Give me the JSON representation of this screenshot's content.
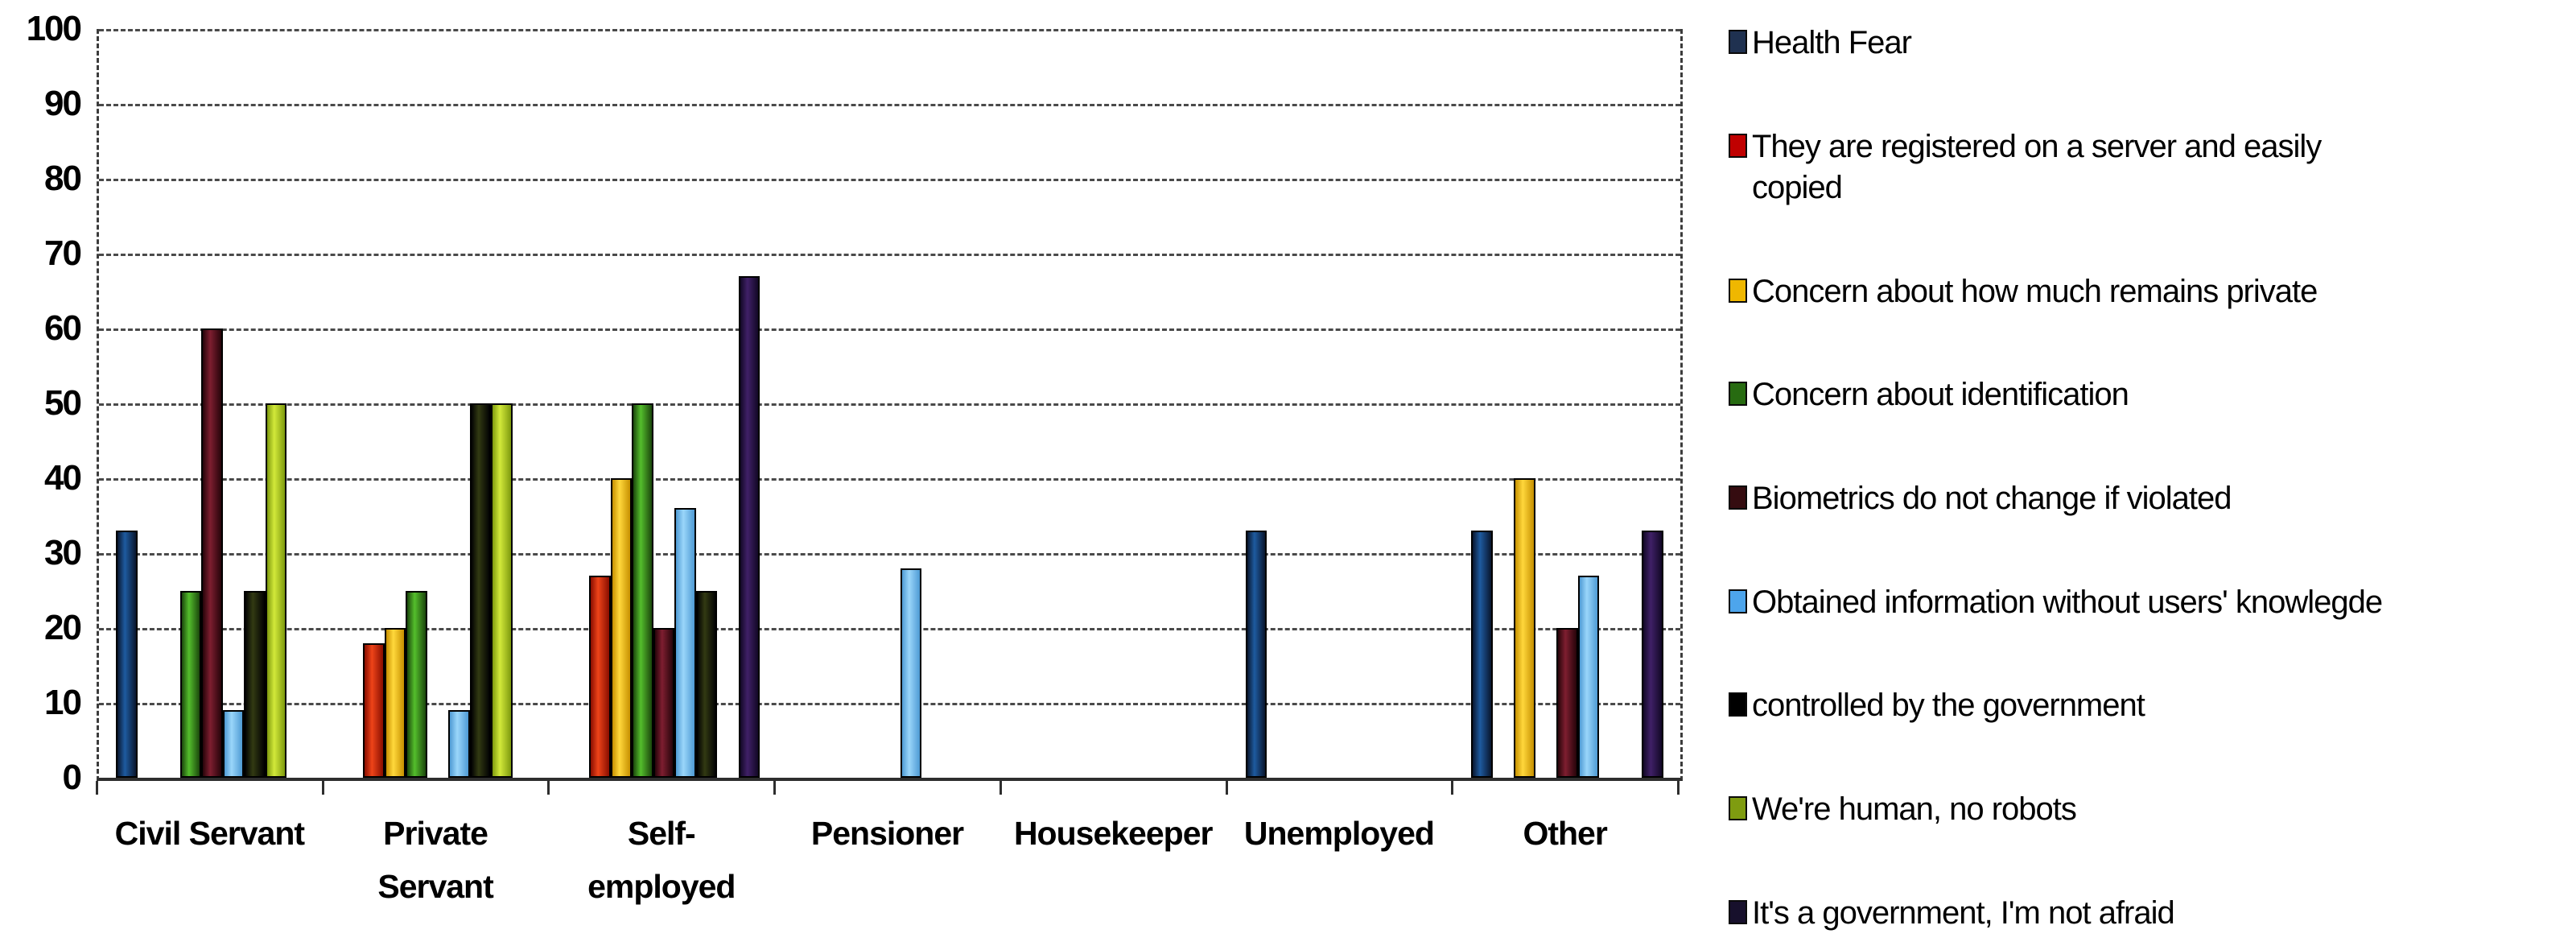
{
  "chart_data": {
    "type": "bar",
    "title": "",
    "xlabel": "",
    "ylabel": "",
    "ylim": [
      0,
      100
    ],
    "y_ticks": [
      100,
      90,
      80,
      70,
      60,
      50,
      40,
      30,
      20,
      10,
      0
    ],
    "grid": "horizontal dashed",
    "legend_position": "right",
    "categories": [
      "Civil Servant",
      "Private\nServant",
      "Self-\nemployed",
      "Pensioner",
      "Housekeeper",
      "Unemployed",
      "Other"
    ],
    "series": [
      {
        "name": "Health Fear",
        "legend_label": "Health Fear",
        "color": "#1F3150",
        "bar_dark": "#09162E",
        "bar_light": "#1E5BA0",
        "values": [
          33,
          0,
          0,
          0,
          0,
          33,
          33
        ]
      },
      {
        "name": "They are registered on a server and easily copied",
        "legend_label": "They are registered on a server and easily\ncopied",
        "color": "#C00000",
        "bar_dark": "#8A0E00",
        "bar_light": "#EE4419",
        "values": [
          0,
          18,
          27,
          0,
          0,
          0,
          0
        ]
      },
      {
        "name": "Concern about how much remains private",
        "legend_label": "Concern about how much remains private",
        "color": "#EFB700",
        "bar_dark": "#C79000",
        "bar_light": "#FFD83C",
        "values": [
          0,
          20,
          40,
          0,
          0,
          0,
          40
        ]
      },
      {
        "name": "Concern about identification",
        "legend_label": "Concern about identification",
        "color": "#276B11",
        "bar_dark": "#1B470C",
        "bar_light": "#54BE2C",
        "values": [
          25,
          25,
          50,
          0,
          0,
          0,
          0
        ]
      },
      {
        "name": "Biometrics do not change if violated",
        "legend_label": "Biometrics do not change if violated",
        "color": "#350C10",
        "bar_dark": "#26040A",
        "bar_light": "#7E1E30",
        "values": [
          60,
          0,
          20,
          0,
          0,
          0,
          20
        ]
      },
      {
        "name": "Obtained information without users' knowlegde",
        "legend_label": "Obtained information without users' knowlegde",
        "color": "#4DA5EC",
        "bar_dark": "#4E9AD4",
        "bar_light": "#9AD6FA",
        "values": [
          9,
          9,
          36,
          28,
          0,
          0,
          27
        ]
      },
      {
        "name": "controlled by the government",
        "legend_label": "controlled by the government",
        "color": "#000000",
        "bar_dark": "#030303",
        "bar_light": "#323A12",
        "values": [
          25,
          50,
          25,
          0,
          0,
          0,
          0
        ]
      },
      {
        "name": "We're human, no robots",
        "legend_label": "We're human,  no robots",
        "color": "#7F9C10",
        "bar_dark": "#7E9A0E",
        "bar_light": "#D2E93A",
        "values": [
          50,
          50,
          0,
          0,
          0,
          0,
          0
        ]
      },
      {
        "name": "It's a government, I'm not afraid",
        "legend_label": "It's a government,  I'm not afraid",
        "color": "#17102C",
        "bar_dark": "#120826",
        "bar_light": "#402067",
        "values": [
          0,
          0,
          67,
          0,
          0,
          0,
          33
        ]
      }
    ]
  }
}
